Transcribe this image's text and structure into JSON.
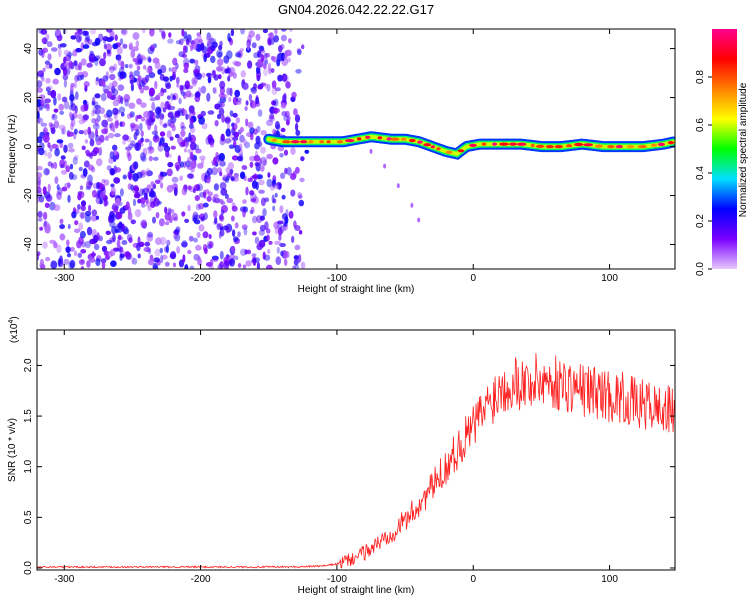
{
  "title": "GN04.2026.042.22.22.G17",
  "chart_data": [
    {
      "type": "heatmap",
      "title": "",
      "xlabel": "Height of straight line (km)",
      "ylabel": "Frequency (Hz)",
      "xlim": [
        -320,
        148
      ],
      "ylim": [
        -50,
        48
      ],
      "xticks": [
        -300,
        -200,
        -100,
        0,
        100
      ],
      "yticks": [
        -40,
        -20,
        0,
        20,
        40
      ],
      "colorbar": {
        "label": "Normalized spectral amplitude",
        "range": [
          0,
          1
        ],
        "ticks": [
          "0.0",
          "0.2",
          "0.4",
          "0.6",
          "0.8"
        ],
        "colors": [
          "#e8c8ff",
          "#7a00ff",
          "#0000ff",
          "#00e0ff",
          "#00ff00",
          "#ffff00",
          "#ff8000",
          "#ff0000",
          "#ff0090"
        ]
      },
      "noise_region": {
        "x_from": -320,
        "x_to": -120,
        "freq_range": [
          -50,
          48
        ],
        "amplitude": [
          0.05,
          0.25
        ]
      },
      "signal_track": [
        {
          "x": -150,
          "freq": 3
        },
        {
          "x": -140,
          "freq": 2
        },
        {
          "x": -125,
          "freq": 2
        },
        {
          "x": -110,
          "freq": 2
        },
        {
          "x": -95,
          "freq": 2
        },
        {
          "x": -85,
          "freq": 3
        },
        {
          "x": -75,
          "freq": 4
        },
        {
          "x": -60,
          "freq": 3
        },
        {
          "x": -50,
          "freq": 3
        },
        {
          "x": -40,
          "freq": 2
        },
        {
          "x": -30,
          "freq": 0
        },
        {
          "x": -20,
          "freq": -2
        },
        {
          "x": -12,
          "freq": -3
        },
        {
          "x": -5,
          "freq": 0
        },
        {
          "x": 5,
          "freq": 1
        },
        {
          "x": 20,
          "freq": 1
        },
        {
          "x": 35,
          "freq": 1
        },
        {
          "x": 50,
          "freq": 0
        },
        {
          "x": 65,
          "freq": 0
        },
        {
          "x": 80,
          "freq": 1
        },
        {
          "x": 95,
          "freq": 0
        },
        {
          "x": 110,
          "freq": 0
        },
        {
          "x": 125,
          "freq": 0
        },
        {
          "x": 140,
          "freq": 1
        },
        {
          "x": 148,
          "freq": 2
        }
      ],
      "secondary_trace": [
        {
          "x": -75,
          "freq": -2
        },
        {
          "x": -65,
          "freq": -8
        },
        {
          "x": -55,
          "freq": -16
        },
        {
          "x": -45,
          "freq": -24
        },
        {
          "x": -40,
          "freq": -30
        }
      ]
    },
    {
      "type": "line",
      "title": "",
      "xlabel": "Height of straight line (km)",
      "ylabel": "SNR (10 * v/v)",
      "scale_label": "(x10",
      "scale_exponent": "4",
      "scale_close": ")",
      "xlim": [
        -320,
        148
      ],
      "ylim": [
        -0.02,
        2.35
      ],
      "xticks": [
        -300,
        -200,
        -100,
        0,
        100
      ],
      "yticks": [
        "0.0",
        "0.5",
        "1.0",
        "1.5",
        "2.0"
      ],
      "color": "#ff2020",
      "series": [
        {
          "x": [
            -320,
            -280,
            -240,
            -200,
            -160,
            -130,
            -110,
            -100,
            -90,
            -80,
            -70,
            -60,
            -50,
            -40,
            -30,
            -20,
            -10,
            0,
            10,
            20,
            30,
            40,
            50,
            60,
            70,
            80,
            90,
            100,
            110,
            120,
            130,
            140,
            148
          ],
          "y": [
            0.01,
            0.01,
            0.01,
            0.01,
            0.01,
            0.01,
            0.02,
            0.04,
            0.08,
            0.15,
            0.24,
            0.35,
            0.47,
            0.62,
            0.8,
            1.0,
            1.2,
            1.4,
            1.6,
            1.78,
            1.85,
            1.82,
            1.86,
            1.83,
            1.8,
            1.76,
            1.74,
            1.7,
            1.68,
            1.62,
            1.6,
            1.56,
            1.55
          ]
        }
      ]
    }
  ]
}
